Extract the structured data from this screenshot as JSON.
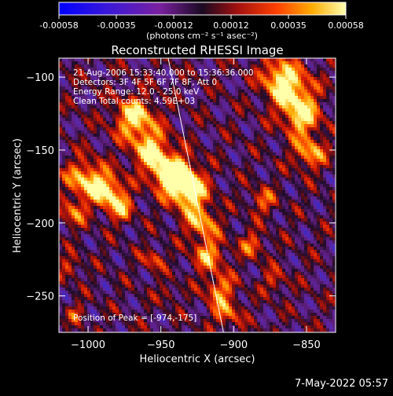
{
  "colorbar": {
    "tick_labels": [
      "-0.00058",
      "-0.00035",
      "-0.00012",
      "0.00012",
      "0.00035",
      "0.00058"
    ],
    "unit_label": "(photons cm⁻² s⁻¹ asec⁻²)",
    "range": [
      -0.00058,
      0.00058
    ]
  },
  "chart_data": {
    "type": "heatmap",
    "title": "Reconstructed RHESSI Image",
    "xlabel": "Heliocentric X (arcsec)",
    "ylabel": "Heliocentric Y (arcsec)",
    "xlim": [
      -1020,
      -830
    ],
    "ylim": [
      -275,
      -87
    ],
    "x_ticks": [
      -1000,
      -950,
      -900,
      -850
    ],
    "y_ticks": [
      -250,
      -200,
      -150,
      -100
    ],
    "x_tick_labels": [
      "−1000",
      "−950",
      "−900",
      "−850"
    ],
    "y_tick_labels": [
      "−250",
      "−200",
      "−150",
      "−100"
    ],
    "limb_line": [
      [
        -945,
        -87
      ],
      [
        -907,
        -275
      ]
    ],
    "annotations": {
      "time_range": "21-Aug-2006 15:33:40.000 to 15:36:36.000",
      "detectors": "Detectors: 3F 4F 5F 6F 7F 8F, Att 0",
      "energy": "Energy Range: 12.0 - 25.0 keV",
      "clean": "Clean     Total counts: 4.59E+03",
      "peak": "Position of Peak = [-974,-175]"
    }
  },
  "footer": {
    "date": "7-May-2022 05:57"
  }
}
